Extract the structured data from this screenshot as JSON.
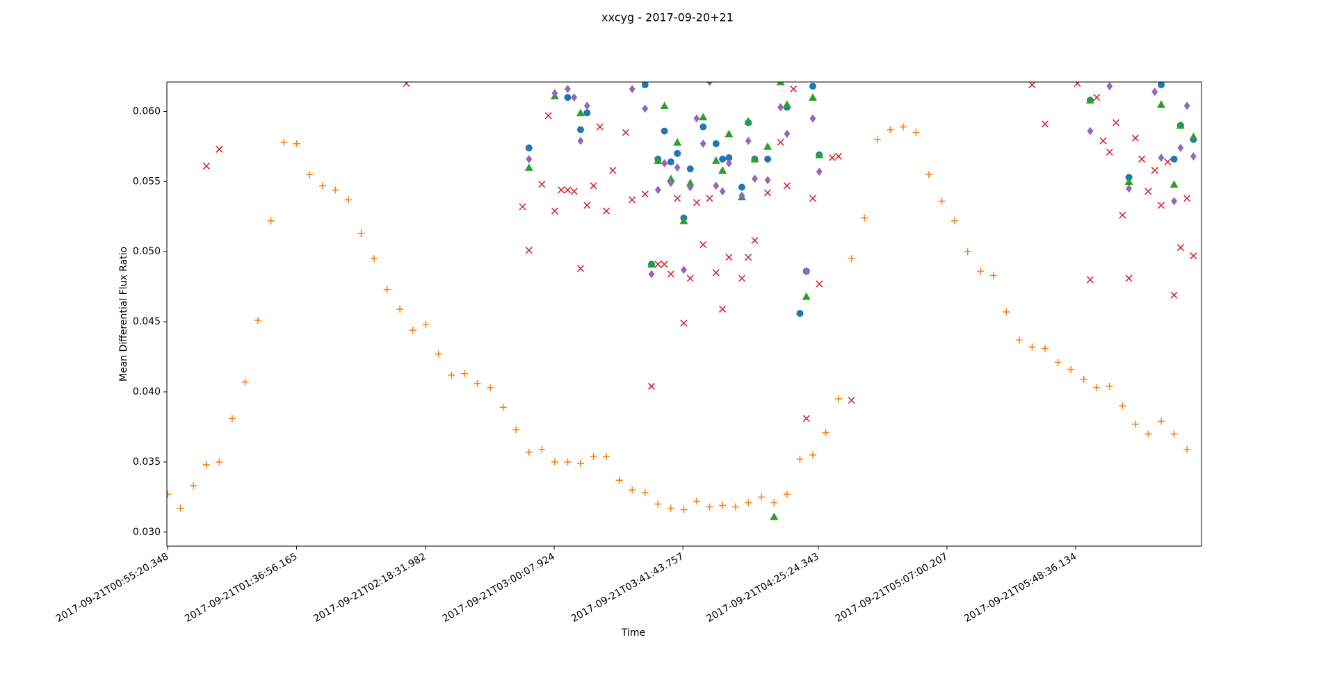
{
  "chart_data": {
    "type": "scatter",
    "title": "xxcyg - 2017-09-20+21",
    "x_label": "Time",
    "y_label": "Mean Differential Flux Ratio",
    "xlim": [
      "2017-09-21T00:55:04",
      "2017-09-21T06:29:11"
    ],
    "xticks": [
      "2017-09-21T00:55:20.348",
      "2017-09-21T01:36:56.165",
      "2017-09-21T02:18:31.982",
      "2017-09-21T03:00:07.924",
      "2017-09-21T03:41:43.757",
      "2017-09-21T04:25:24.343",
      "2017-09-21T05:07:00.207",
      "2017-09-21T05:48:36.134"
    ],
    "ylim": [
      0.029,
      0.0621
    ],
    "yticks": [
      {
        "value": 0.03,
        "label": "0.030"
      },
      0.035,
      {
        "value": 0.04,
        "label": "0.040"
      },
      0.045,
      {
        "value": 0.05,
        "label": "0.050"
      },
      0.055,
      {
        "value": 0.06,
        "label": "0.060"
      }
    ],
    "grid": false,
    "series": [
      {
        "color": "#1f77b4",
        "marker": "circle",
        "x": [
          "2017-09-21T02:52:00",
          "2017-09-21T03:04:30",
          "2017-09-21T03:08:40",
          "2017-09-21T03:10:45",
          "2017-09-21T03:29:30",
          "2017-09-21T03:31:35",
          "2017-09-21T03:33:40",
          "2017-09-21T03:35:45",
          "2017-09-21T03:37:50",
          "2017-09-21T03:39:55",
          "2017-09-21T03:42:00",
          "2017-09-21T03:44:05",
          "2017-09-21T03:48:15",
          "2017-09-21T03:52:25",
          "2017-09-21T03:54:30",
          "2017-09-21T03:56:35",
          "2017-09-21T04:00:45",
          "2017-09-21T04:02:50",
          "2017-09-21T04:04:55",
          "2017-09-21T04:09:05",
          "2017-09-21T04:15:20",
          "2017-09-21T04:19:30",
          "2017-09-21T04:21:35",
          "2017-09-21T04:23:40",
          "2017-09-21T04:25:45",
          "2017-09-21T05:53:15",
          "2017-09-21T06:05:45",
          "2017-09-21T06:16:10",
          "2017-09-21T06:20:20",
          "2017-09-21T06:22:25",
          "2017-09-21T06:26:35"
        ],
        "values": [
          0.0574,
          0.061,
          0.0587,
          0.0599,
          0.0619,
          0.0491,
          0.0566,
          0.0586,
          0.0564,
          0.057,
          0.0524,
          0.0559,
          0.0589,
          0.0577,
          0.0566,
          0.0567,
          0.0546,
          0.0592,
          0.0566,
          0.0566,
          0.0603,
          0.0456,
          0.0486,
          0.0618,
          0.0569,
          0.0608,
          0.0553,
          0.0619,
          0.0566,
          0.059,
          0.058
        ]
      },
      {
        "color": "#ff7f0e",
        "marker": "plus",
        "x": [
          "2017-09-21T00:55:20",
          "2017-09-21T00:59:30",
          "2017-09-21T01:03:40",
          "2017-09-21T01:07:50",
          "2017-09-21T01:12:00",
          "2017-09-21T01:16:10",
          "2017-09-21T01:20:20",
          "2017-09-21T01:24:30",
          "2017-09-21T01:28:40",
          "2017-09-21T01:32:50",
          "2017-09-21T01:37:00",
          "2017-09-21T01:41:10",
          "2017-09-21T01:45:20",
          "2017-09-21T01:49:30",
          "2017-09-21T01:53:40",
          "2017-09-21T01:57:50",
          "2017-09-21T02:02:00",
          "2017-09-21T02:06:10",
          "2017-09-21T02:10:20",
          "2017-09-21T02:14:30",
          "2017-09-21T02:18:40",
          "2017-09-21T02:22:50",
          "2017-09-21T02:27:00",
          "2017-09-21T02:31:10",
          "2017-09-21T02:35:20",
          "2017-09-21T02:39:30",
          "2017-09-21T02:43:40",
          "2017-09-21T02:47:50",
          "2017-09-21T02:52:00",
          "2017-09-21T02:56:10",
          "2017-09-21T03:00:20",
          "2017-09-21T03:04:30",
          "2017-09-21T03:08:40",
          "2017-09-21T03:12:50",
          "2017-09-21T03:17:00",
          "2017-09-21T03:21:10",
          "2017-09-21T03:25:20",
          "2017-09-21T03:29:30",
          "2017-09-21T03:33:40",
          "2017-09-21T03:37:50",
          "2017-09-21T03:42:00",
          "2017-09-21T03:46:10",
          "2017-09-21T03:50:20",
          "2017-09-21T03:54:30",
          "2017-09-21T03:58:40",
          "2017-09-21T04:02:50",
          "2017-09-21T04:07:00",
          "2017-09-21T04:11:10",
          "2017-09-21T04:15:20",
          "2017-09-21T04:19:30",
          "2017-09-21T04:23:40",
          "2017-09-21T04:27:50",
          "2017-09-21T04:32:00",
          "2017-09-21T04:36:10",
          "2017-09-21T04:40:20",
          "2017-09-21T04:44:30",
          "2017-09-21T04:48:40",
          "2017-09-21T04:52:50",
          "2017-09-21T04:57:00",
          "2017-09-21T05:01:10",
          "2017-09-21T05:05:20",
          "2017-09-21T05:09:30",
          "2017-09-21T05:13:40",
          "2017-09-21T05:17:50",
          "2017-09-21T05:22:00",
          "2017-09-21T05:26:10",
          "2017-09-21T05:30:20",
          "2017-09-21T05:34:30",
          "2017-09-21T05:38:40",
          "2017-09-21T05:42:50",
          "2017-09-21T05:47:00",
          "2017-09-21T05:51:10",
          "2017-09-21T05:55:20",
          "2017-09-21T05:59:30",
          "2017-09-21T06:03:40",
          "2017-09-21T06:07:50",
          "2017-09-21T06:12:00",
          "2017-09-21T06:16:10",
          "2017-09-21T06:20:20",
          "2017-09-21T06:24:30"
        ],
        "values": [
          0.0327,
          0.0317,
          0.0333,
          0.0348,
          0.035,
          0.0381,
          0.0407,
          0.0451,
          0.0522,
          0.0578,
          0.0577,
          0.0555,
          0.0547,
          0.0544,
          0.0537,
          0.0513,
          0.0495,
          0.0473,
          0.0459,
          0.0444,
          0.0448,
          0.0427,
          0.0412,
          0.0413,
          0.0406,
          0.0403,
          0.0389,
          0.0373,
          0.0357,
          0.0359,
          0.035,
          0.035,
          0.0349,
          0.0354,
          0.0354,
          0.0337,
          0.033,
          0.0328,
          0.032,
          0.0317,
          0.0316,
          0.0322,
          0.0318,
          0.0319,
          0.0318,
          0.0321,
          0.0325,
          0.0321,
          0.0327,
          0.0352,
          0.0355,
          0.0371,
          0.0395,
          0.0495,
          0.0524,
          0.058,
          0.0587,
          0.0589,
          0.0585,
          0.0555,
          0.0536,
          0.0522,
          0.05,
          0.0486,
          0.0483,
          0.0457,
          0.0437,
          0.0432,
          0.0431,
          0.0421,
          0.0416,
          0.0409,
          0.0403,
          0.0404,
          0.039,
          0.0377,
          0.037,
          0.0379,
          0.037,
          0.0359
        ]
      },
      {
        "color": "#2ca02c",
        "marker": "triangle",
        "x": [
          "2017-09-21T02:52:00",
          "2017-09-21T03:00:20",
          "2017-09-21T03:08:40",
          "2017-09-21T03:31:35",
          "2017-09-21T03:33:40",
          "2017-09-21T03:35:45",
          "2017-09-21T03:37:50",
          "2017-09-21T03:39:55",
          "2017-09-21T03:42:00",
          "2017-09-21T03:44:05",
          "2017-09-21T03:48:15",
          "2017-09-21T03:52:25",
          "2017-09-21T03:54:30",
          "2017-09-21T03:56:35",
          "2017-09-21T04:00:45",
          "2017-09-21T04:02:50",
          "2017-09-21T04:04:55",
          "2017-09-21T04:09:05",
          "2017-09-21T04:11:10",
          "2017-09-21T04:13:15",
          "2017-09-21T04:15:20",
          "2017-09-21T04:21:35",
          "2017-09-21T04:23:40",
          "2017-09-21T04:25:45",
          "2017-09-21T05:53:15",
          "2017-09-21T06:05:45",
          "2017-09-21T06:16:10",
          "2017-09-21T06:20:20",
          "2017-09-21T06:22:25",
          "2017-09-21T06:26:35"
        ],
        "values": [
          0.056,
          0.0611,
          0.0599,
          0.0491,
          0.0565,
          0.0604,
          0.0552,
          0.0578,
          0.0522,
          0.0549,
          0.0596,
          0.0565,
          0.0558,
          0.0584,
          0.0539,
          0.0593,
          0.0566,
          0.0575,
          0.0311,
          0.0621,
          0.0605,
          0.0468,
          0.061,
          0.0569,
          0.0608,
          0.055,
          0.0605,
          0.0548,
          0.059,
          0.0582
        ]
      },
      {
        "color": "#d62728",
        "marker": "x",
        "x": [
          "2017-09-21T01:07:50",
          "2017-09-21T01:12:00",
          "2017-09-21T02:12:25",
          "2017-09-21T02:49:55",
          "2017-09-21T02:52:00",
          "2017-09-21T02:56:10",
          "2017-09-21T02:58:15",
          "2017-09-21T03:00:20",
          "2017-09-21T03:02:25",
          "2017-09-21T03:04:30",
          "2017-09-21T03:06:35",
          "2017-09-21T03:08:40",
          "2017-09-21T03:10:45",
          "2017-09-21T03:12:50",
          "2017-09-21T03:14:55",
          "2017-09-21T03:17:00",
          "2017-09-21T03:19:05",
          "2017-09-21T03:23:15",
          "2017-09-21T03:25:20",
          "2017-09-21T03:29:30",
          "2017-09-21T03:31:35",
          "2017-09-21T03:33:40",
          "2017-09-21T03:35:45",
          "2017-09-21T03:37:50",
          "2017-09-21T03:39:55",
          "2017-09-21T03:42:00",
          "2017-09-21T03:44:05",
          "2017-09-21T03:46:10",
          "2017-09-21T03:48:15",
          "2017-09-21T03:50:20",
          "2017-09-21T03:52:25",
          "2017-09-21T03:54:30",
          "2017-09-21T03:56:35",
          "2017-09-21T04:00:45",
          "2017-09-21T04:02:50",
          "2017-09-21T04:04:55",
          "2017-09-21T04:09:05",
          "2017-09-21T04:13:15",
          "2017-09-21T04:15:20",
          "2017-09-21T04:17:25",
          "2017-09-21T04:21:35",
          "2017-09-21T04:23:40",
          "2017-09-21T04:25:45",
          "2017-09-21T04:29:55",
          "2017-09-21T04:32:00",
          "2017-09-21T04:36:10",
          "2017-09-21T05:34:30",
          "2017-09-21T05:38:40",
          "2017-09-21T05:49:05",
          "2017-09-21T05:53:15",
          "2017-09-21T05:55:20",
          "2017-09-21T05:57:25",
          "2017-09-21T05:59:30",
          "2017-09-21T06:01:35",
          "2017-09-21T06:03:40",
          "2017-09-21T06:05:45",
          "2017-09-21T06:07:50",
          "2017-09-21T06:09:55",
          "2017-09-21T06:12:00",
          "2017-09-21T06:14:05",
          "2017-09-21T06:16:10",
          "2017-09-21T06:18:15",
          "2017-09-21T06:20:20",
          "2017-09-21T06:22:25",
          "2017-09-21T06:24:30",
          "2017-09-21T06:26:35"
        ],
        "values": [
          0.0561,
          0.0573,
          0.062,
          0.0532,
          0.0501,
          0.0548,
          0.0597,
          0.0529,
          0.0544,
          0.0544,
          0.0543,
          0.0488,
          0.0533,
          0.0547,
          0.0589,
          0.0529,
          0.0558,
          0.0585,
          0.0537,
          0.0541,
          0.0404,
          0.0491,
          0.0491,
          0.0484,
          0.0538,
          0.0449,
          0.0481,
          0.0535,
          0.0505,
          0.0538,
          0.0485,
          0.0459,
          0.0496,
          0.0481,
          0.0496,
          0.0508,
          0.0542,
          0.0578,
          0.0547,
          0.0616,
          0.0381,
          0.0538,
          0.0477,
          0.0567,
          0.0568,
          0.0394,
          0.0619,
          0.0591,
          0.062,
          0.048,
          0.061,
          0.0579,
          0.0571,
          0.0592,
          0.0526,
          0.0481,
          0.0581,
          0.0566,
          0.0543,
          0.0558,
          0.0533,
          0.0564,
          0.0469,
          0.0503,
          0.0538,
          0.0497
        ]
      },
      {
        "color": "#9467bd",
        "marker": "diamond",
        "x": [
          "2017-09-21T02:52:00",
          "2017-09-21T03:00:20",
          "2017-09-21T03:04:30",
          "2017-09-21T03:06:35",
          "2017-09-21T03:08:40",
          "2017-09-21T03:10:45",
          "2017-09-21T03:25:20",
          "2017-09-21T03:29:30",
          "2017-09-21T03:31:35",
          "2017-09-21T03:33:40",
          "2017-09-21T03:35:45",
          "2017-09-21T03:37:50",
          "2017-09-21T03:39:55",
          "2017-09-21T03:42:00",
          "2017-09-21T03:44:05",
          "2017-09-21T03:46:10",
          "2017-09-21T03:48:15",
          "2017-09-21T03:50:20",
          "2017-09-21T03:52:25",
          "2017-09-21T03:54:30",
          "2017-09-21T03:56:35",
          "2017-09-21T04:00:45",
          "2017-09-21T04:02:50",
          "2017-09-21T04:04:55",
          "2017-09-21T04:09:05",
          "2017-09-21T04:13:15",
          "2017-09-21T04:15:20",
          "2017-09-21T04:21:35",
          "2017-09-21T04:23:40",
          "2017-09-21T04:25:45",
          "2017-09-21T05:53:15",
          "2017-09-21T05:59:30",
          "2017-09-21T06:05:45",
          "2017-09-21T06:14:05",
          "2017-09-21T06:16:10",
          "2017-09-21T06:20:20",
          "2017-09-21T06:22:25",
          "2017-09-21T06:24:30",
          "2017-09-21T06:26:35"
        ],
        "values": [
          0.0566,
          0.0613,
          0.0616,
          0.061,
          0.0579,
          0.0604,
          0.0616,
          0.0602,
          0.0484,
          0.0544,
          0.0563,
          0.0549,
          0.056,
          0.0487,
          0.0546,
          0.0595,
          0.0577,
          0.0621,
          0.0547,
          0.0543,
          0.0563,
          0.054,
          0.0579,
          0.0552,
          0.0551,
          0.0603,
          0.0584,
          0.0486,
          0.0595,
          0.0557,
          0.0586,
          0.0618,
          0.0545,
          0.0614,
          0.0567,
          0.0536,
          0.0574,
          0.0604,
          0.0568
        ]
      }
    ]
  }
}
